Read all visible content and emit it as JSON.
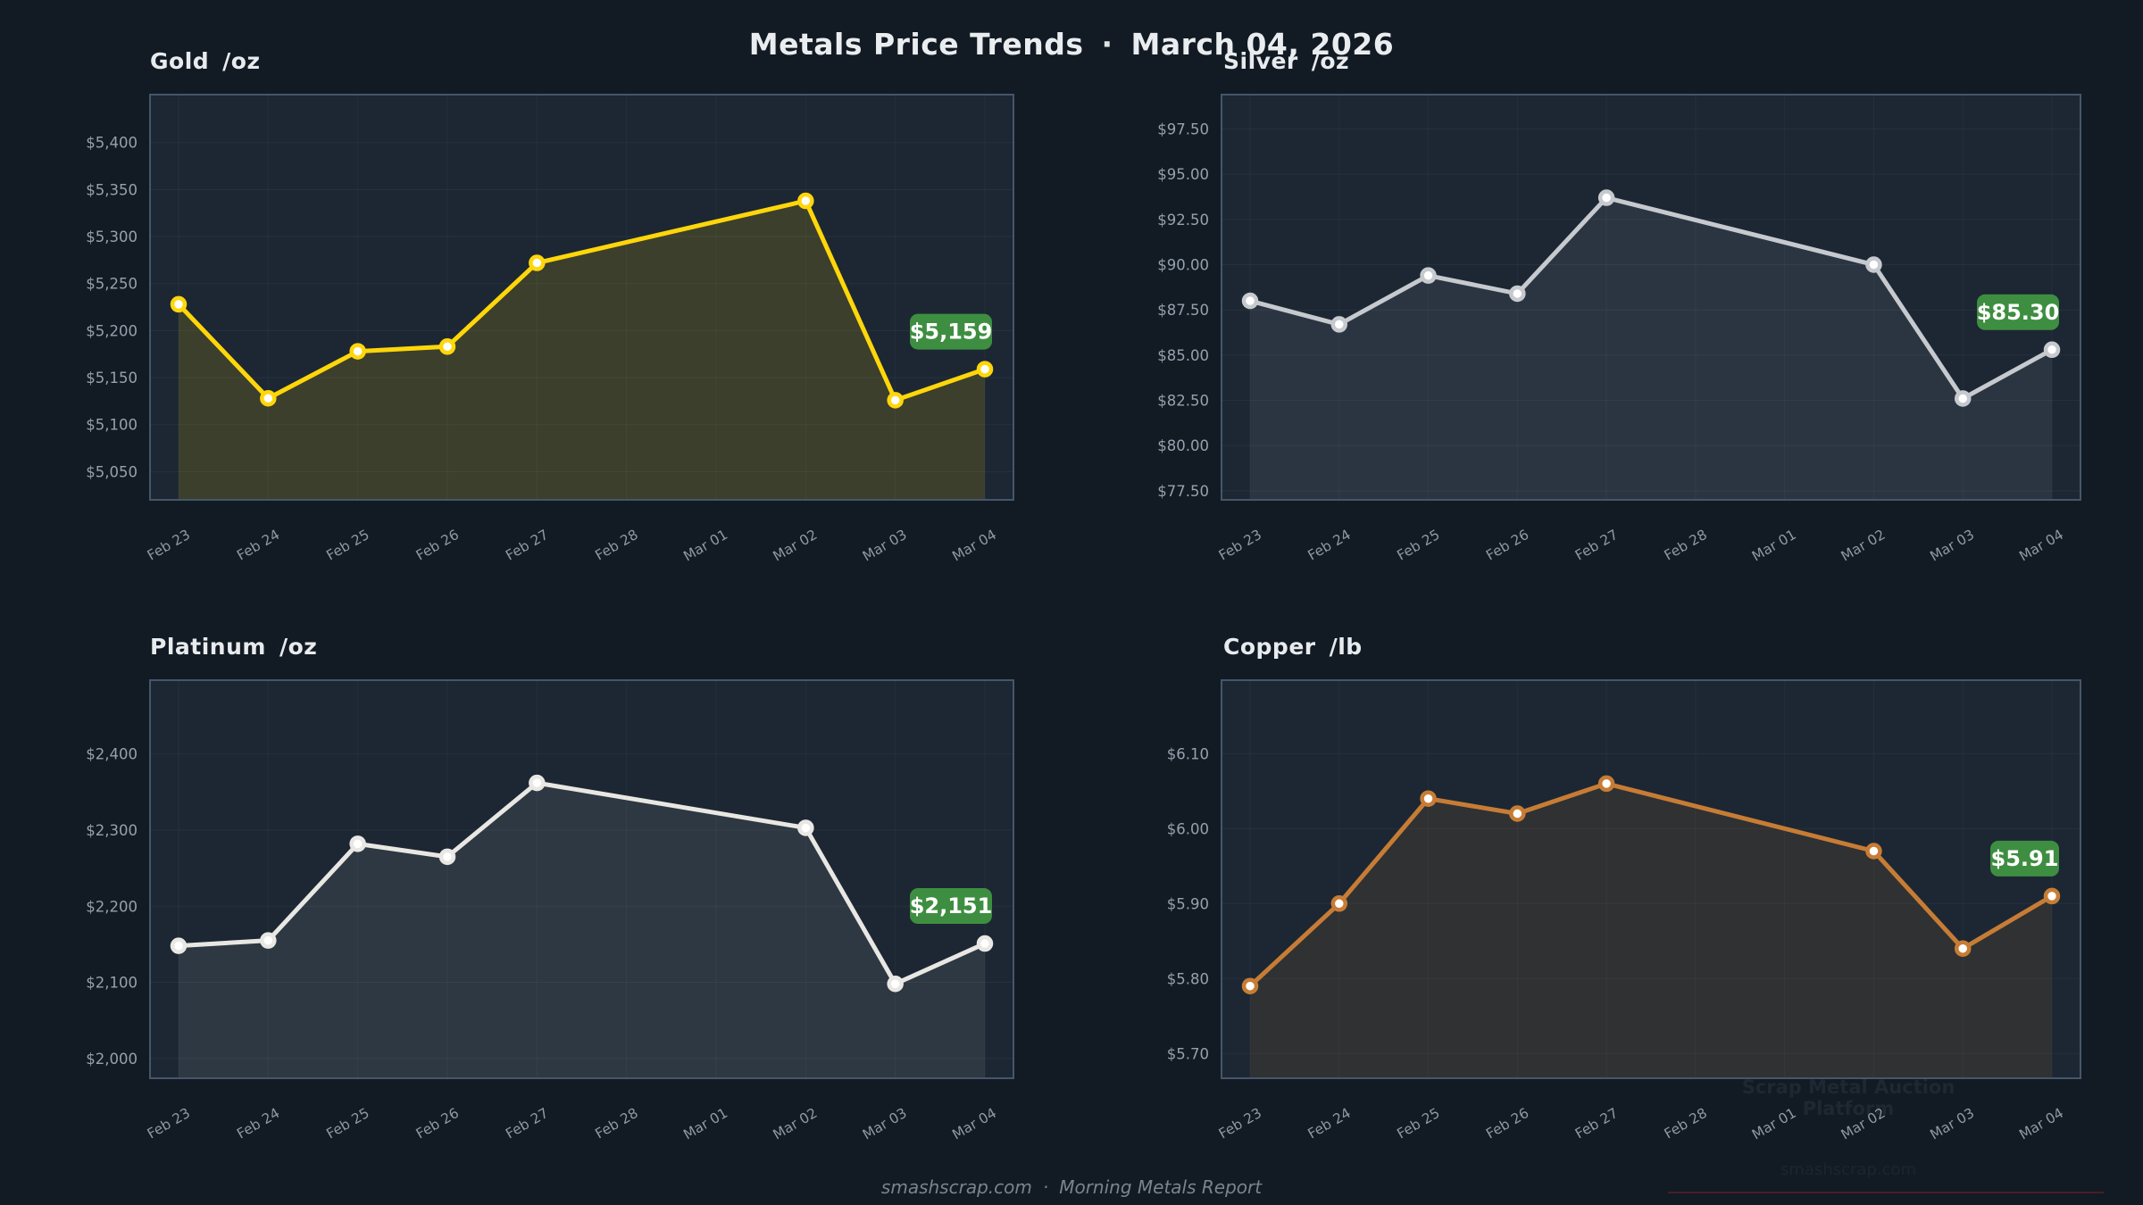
{
  "header": {
    "title": "Metals Price Trends",
    "separator": "·",
    "date": "March 04, 2026"
  },
  "footer": {
    "site": "smashscrap.com",
    "separator": "·",
    "report": "Morning Metals Report"
  },
  "watermark": {
    "line1": "Scrap Metal Auction Platform",
    "line2": "smashscrap.com"
  },
  "chart_data": [
    {
      "type": "area",
      "title": "Gold",
      "unit": "/oz",
      "categories": [
        "Feb 23",
        "Feb 24",
        "Feb 25",
        "Feb 26",
        "Feb 27",
        "Feb 28",
        "Mar 01",
        "Mar 02",
        "Mar 03",
        "Mar 04"
      ],
      "values": [
        5228,
        5128,
        5178,
        5183,
        5272,
        null,
        null,
        5338,
        5126,
        5159
      ],
      "last_value_label": "$5,159",
      "ylim": [
        5020,
        5451
      ],
      "yticks": [
        5050,
        5100,
        5150,
        5200,
        5250,
        5300,
        5350,
        5400
      ],
      "ytick_labels": [
        "$5,050",
        "$5,100",
        "$5,150",
        "$5,200",
        "$5,250",
        "$5,300",
        "$5,350",
        "$5,400"
      ],
      "line_color": "#ffd60a",
      "fill_color": "rgba(255,214,10,0.14)",
      "badge_color": "#3e8e41",
      "grid": true,
      "legend": "none"
    },
    {
      "type": "area",
      "title": "Silver",
      "unit": "/oz",
      "categories": [
        "Feb 23",
        "Feb 24",
        "Feb 25",
        "Feb 26",
        "Feb 27",
        "Feb 28",
        "Mar 01",
        "Mar 02",
        "Mar 03",
        "Mar 04"
      ],
      "values": [
        88.0,
        86.7,
        89.4,
        88.4,
        93.7,
        null,
        null,
        90.0,
        82.6,
        85.3
      ],
      "last_value_label": "$85.30",
      "ylim": [
        77.0,
        99.4
      ],
      "yticks": [
        77.5,
        80.0,
        82.5,
        85.0,
        87.5,
        90.0,
        92.5,
        95.0,
        97.5
      ],
      "ytick_labels": [
        "$77.50",
        "$80.00",
        "$82.50",
        "$85.00",
        "$87.50",
        "$90.00",
        "$92.50",
        "$95.00",
        "$97.50"
      ],
      "line_color": "#c6c9ce",
      "fill_color": "rgba(198,201,206,0.09)",
      "badge_color": "#3e8e41",
      "grid": true,
      "legend": "none"
    },
    {
      "type": "area",
      "title": "Platinum",
      "unit": "/oz",
      "categories": [
        "Feb 23",
        "Feb 24",
        "Feb 25",
        "Feb 26",
        "Feb 27",
        "Feb 28",
        "Mar 01",
        "Mar 02",
        "Mar 03",
        "Mar 04"
      ],
      "values": [
        2148,
        2155,
        2282,
        2265,
        2362,
        null,
        null,
        2303,
        2098,
        2151
      ],
      "last_value_label": "$2,151",
      "ylim": [
        1974,
        2497
      ],
      "yticks": [
        2000,
        2100,
        2200,
        2300,
        2400
      ],
      "ytick_labels": [
        "$2,000",
        "$2,100",
        "$2,200",
        "$2,300",
        "$2,400"
      ],
      "line_color": "#e9e7e3",
      "fill_color": "rgba(233,231,227,0.09)",
      "badge_color": "#3e8e41",
      "grid": true,
      "legend": "none"
    },
    {
      "type": "area",
      "title": "Copper",
      "unit": "/lb",
      "categories": [
        "Feb 23",
        "Feb 24",
        "Feb 25",
        "Feb 26",
        "Feb 27",
        "Feb 28",
        "Mar 01",
        "Mar 02",
        "Mar 03",
        "Mar 04"
      ],
      "values": [
        5.79,
        5.9,
        6.04,
        6.02,
        6.06,
        null,
        null,
        5.97,
        5.84,
        5.91
      ],
      "last_value_label": "$5.91",
      "ylim": [
        5.667,
        6.198
      ],
      "yticks": [
        5.7,
        5.8,
        5.9,
        6.0,
        6.1
      ],
      "ytick_labels": [
        "$5.70",
        "$5.80",
        "$5.90",
        "$6.00",
        "$6.10"
      ],
      "line_color": "#c77c35",
      "fill_color": "rgba(199,124,53,0.12)",
      "badge_color": "#3e8e41",
      "grid": true,
      "legend": "none"
    }
  ]
}
